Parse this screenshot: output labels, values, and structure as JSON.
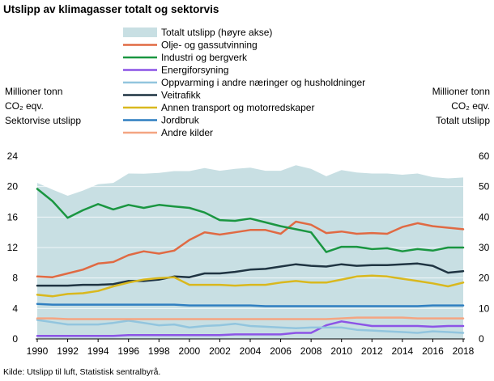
{
  "chart_data": {
    "type": "line",
    "title": "Utslipp av klimagasser totalt og sektorvis",
    "source": "Kilde: Utslipp til luft, Statistisk sentralbyrå.",
    "ylabel_left": [
      "Millioner tonn",
      "CO₂ eqv.",
      "Sektorvise utslipp"
    ],
    "ylabel_right": [
      "Millioner tonn",
      "CO₂ eqv.",
      "Totalt utslipp"
    ],
    "ylim_left": [
      0,
      24
    ],
    "ylim_right": [
      0,
      60
    ],
    "yticks_left": [
      "0",
      "4",
      "8",
      "12",
      "16",
      "20",
      "24"
    ],
    "yticks_right": [
      "0",
      "10",
      "20",
      "30",
      "40",
      "50",
      "60"
    ],
    "xticks": [
      "1990",
      "1992",
      "1994",
      "1996",
      "1998",
      "2000",
      "2002",
      "2004",
      "2006",
      "2008",
      "2010",
      "2012",
      "2014",
      "2016",
      "2018"
    ],
    "legend_position": "top",
    "grid": "horizontal",
    "x": [
      1990,
      1991,
      1992,
      1993,
      1994,
      1995,
      1996,
      1997,
      1998,
      1999,
      2000,
      2001,
      2002,
      2003,
      2004,
      2005,
      2006,
      2007,
      2008,
      2009,
      2010,
      2011,
      2012,
      2013,
      2014,
      2015,
      2016,
      2017,
      2018
    ],
    "area": {
      "name": "Totalt utslipp (høyre akse)",
      "axis": "right",
      "color": "#c8dfe3",
      "values": [
        51.2,
        49.0,
        47.0,
        48.7,
        50.8,
        51.2,
        54.3,
        54.2,
        54.5,
        55.1,
        55.1,
        56.1,
        55.2,
        55.8,
        56.2,
        55.2,
        55.2,
        57.0,
        55.8,
        53.4,
        55.4,
        54.6,
        54.3,
        54.3,
        53.9,
        54.3,
        53.1,
        52.7,
        53.0
      ]
    },
    "series": [
      {
        "name": "Olje- og gassutvinning",
        "color": "#e06a43",
        "values": [
          8.2,
          8.1,
          8.6,
          9.1,
          9.9,
          10.1,
          11.0,
          11.5,
          11.2,
          11.6,
          13.0,
          14.0,
          13.7,
          14.0,
          14.3,
          14.3,
          13.8,
          15.4,
          15.0,
          13.9,
          14.1,
          13.8,
          13.9,
          13.8,
          14.7,
          15.2,
          14.8,
          14.6,
          14.4
        ]
      },
      {
        "name": "Industri og bergverk",
        "color": "#1a9641",
        "values": [
          19.7,
          18.1,
          15.9,
          16.9,
          17.7,
          17.0,
          17.6,
          17.2,
          17.6,
          17.4,
          17.2,
          16.6,
          15.6,
          15.5,
          15.8,
          15.3,
          14.8,
          14.4,
          14.0,
          11.4,
          12.1,
          12.1,
          11.8,
          11.9,
          11.5,
          11.8,
          11.6,
          12.0,
          12.0
        ]
      },
      {
        "name": "Energiforsyning",
        "color": "#8c54e6",
        "values": [
          0.4,
          0.4,
          0.4,
          0.4,
          0.4,
          0.4,
          0.5,
          0.5,
          0.5,
          0.5,
          0.5,
          0.5,
          0.5,
          0.6,
          0.6,
          0.6,
          0.6,
          0.8,
          0.8,
          1.8,
          2.3,
          2.0,
          1.7,
          1.7,
          1.7,
          1.7,
          1.6,
          1.7,
          1.7
        ]
      },
      {
        "name": "Oppvarming i andre næringer og husholdninger",
        "color": "#92c5de",
        "values": [
          2.5,
          2.2,
          1.9,
          1.9,
          1.9,
          2.1,
          2.4,
          2.1,
          1.8,
          1.9,
          1.5,
          1.7,
          1.8,
          2.0,
          1.7,
          1.6,
          1.5,
          1.4,
          1.5,
          1.5,
          1.5,
          1.2,
          1.1,
          1.0,
          0.9,
          0.8,
          1.0,
          0.9,
          0.8
        ]
      },
      {
        "name": "Veitrafikk",
        "color": "#1f3442",
        "values": [
          7.0,
          7.0,
          7.0,
          7.1,
          7.1,
          7.2,
          7.6,
          7.6,
          7.8,
          8.2,
          8.1,
          8.6,
          8.6,
          8.8,
          9.1,
          9.2,
          9.5,
          9.8,
          9.6,
          9.5,
          9.8,
          9.6,
          9.7,
          9.7,
          9.8,
          9.9,
          9.6,
          8.7,
          8.9
        ]
      },
      {
        "name": "Annen transport og motorredskaper",
        "color": "#d9b81e",
        "values": [
          5.8,
          5.6,
          5.9,
          6.0,
          6.3,
          6.9,
          7.4,
          7.8,
          8.0,
          8.1,
          7.1,
          7.1,
          7.1,
          7.0,
          7.1,
          7.1,
          7.4,
          7.6,
          7.4,
          7.4,
          7.8,
          8.2,
          8.3,
          8.2,
          7.9,
          7.6,
          7.3,
          6.9,
          7.4
        ]
      },
      {
        "name": "Jordbruk",
        "color": "#2f7fc1",
        "values": [
          4.6,
          4.5,
          4.5,
          4.5,
          4.5,
          4.5,
          4.5,
          4.5,
          4.5,
          4.5,
          4.4,
          4.4,
          4.4,
          4.4,
          4.4,
          4.3,
          4.3,
          4.3,
          4.3,
          4.3,
          4.3,
          4.3,
          4.3,
          4.3,
          4.3,
          4.3,
          4.4,
          4.4,
          4.4
        ]
      },
      {
        "name": "Andre kilder",
        "color": "#f4a582",
        "values": [
          2.7,
          2.7,
          2.6,
          2.6,
          2.6,
          2.6,
          2.6,
          2.6,
          2.6,
          2.6,
          2.6,
          2.6,
          2.6,
          2.6,
          2.6,
          2.6,
          2.6,
          2.6,
          2.6,
          2.6,
          2.7,
          2.8,
          2.8,
          2.8,
          2.8,
          2.7,
          2.7,
          2.7,
          2.7
        ]
      }
    ]
  }
}
